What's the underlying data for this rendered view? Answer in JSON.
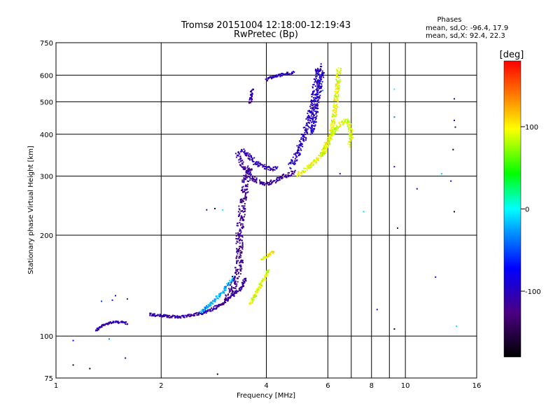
{
  "chart_data": {
    "type": "scatter",
    "title": "Tromsø 20151004 12:18:00-12:19:43",
    "subtitle": "RwPretec (Bp)",
    "phase_info": {
      "heading": "Phases",
      "o_stats": "mean, sd,O: -96.4, 17.9",
      "x_stats": "mean, sd,X:  92.4, 22.3"
    },
    "xlabel": "Frequency [MHz]",
    "ylabel": "Stationary phase Virtual Height [km]",
    "x_scale": "log",
    "y_scale": "log",
    "xlim": [
      1,
      16
    ],
    "ylim": [
      75,
      750
    ],
    "x_ticks": [
      1,
      2,
      4,
      6,
      8,
      10,
      16
    ],
    "x_tick_labels": [
      "1",
      "2",
      "4",
      "6",
      "8",
      "10",
      "16"
    ],
    "y_ticks": [
      75,
      100,
      200,
      300,
      400,
      500,
      600,
      750
    ],
    "y_tick_labels": [
      "75",
      "100",
      "200",
      "300",
      "400",
      "500",
      "600",
      "750"
    ],
    "grid": true,
    "colorbar": {
      "label": "[deg]",
      "range": [
        -180,
        180
      ],
      "ticks": [
        100,
        0,
        -100
      ],
      "tick_labels": [
        "100",
        "0",
        "-100"
      ],
      "colors": [
        "#000000",
        "#4b0082",
        "#0000ff",
        "#00ffff",
        "#00ff00",
        "#ffff00",
        "#ff8000",
        "#ff0000"
      ]
    },
    "series": [
      {
        "traces": [
          {
            "points": [
              [
                1.3,
                104
              ],
              [
                1.35,
                107
              ],
              [
                1.4,
                109
              ],
              [
                1.45,
                110
              ],
              [
                1.5,
                110
              ],
              [
                1.55,
                110
              ],
              [
                1.6,
                109
              ]
            ],
            "phase": -110,
            "spread": 1.5
          },
          {
            "points": [
              [
                1.85,
                116
              ],
              [
                2.0,
                115
              ],
              [
                2.2,
                114
              ],
              [
                2.4,
                115
              ],
              [
                2.6,
                117
              ],
              [
                2.8,
                120
              ],
              [
                3.0,
                125
              ],
              [
                3.2,
                132
              ],
              [
                3.4,
                140
              ],
              [
                3.5,
                150
              ]
            ],
            "phase": -110,
            "spread": 2
          },
          {
            "points": [
              [
                2.6,
                118
              ],
              [
                2.8,
                126
              ],
              [
                3.0,
                135
              ],
              [
                3.1,
                142
              ],
              [
                3.25,
                150
              ]
            ],
            "phase": -20,
            "spread": 2
          },
          {
            "points": [
              [
                3.1,
                130
              ],
              [
                3.2,
                140
              ],
              [
                3.3,
                150
              ],
              [
                3.35,
                165
              ],
              [
                3.35,
                180
              ],
              [
                3.35,
                200
              ],
              [
                3.4,
                230
              ],
              [
                3.45,
                260
              ],
              [
                3.5,
                290
              ],
              [
                3.55,
                310
              ],
              [
                3.6,
                320
              ]
            ],
            "phase": -120,
            "spread": 5
          },
          {
            "points": [
              [
                3.3,
                350
              ],
              [
                3.45,
                320
              ],
              [
                3.6,
                300
              ],
              [
                3.8,
                288
              ],
              [
                4.0,
                285
              ],
              [
                4.2,
                290
              ],
              [
                4.5,
                300
              ],
              [
                4.8,
                310
              ]
            ],
            "phase": -115,
            "spread": 3
          },
          {
            "points": [
              [
                3.4,
                360
              ],
              [
                3.6,
                340
              ],
              [
                3.8,
                325
              ],
              [
                4.0,
                318
              ],
              [
                4.3,
                315
              ]
            ],
            "phase": -105,
            "spread": 3
          },
          {
            "points": [
              [
                3.6,
                495
              ],
              [
                3.62,
                520
              ],
              [
                3.65,
                545
              ]
            ],
            "phase": -110,
            "spread": 2
          },
          {
            "points": [
              [
                4.0,
                580
              ],
              [
                4.2,
                595
              ],
              [
                4.5,
                605
              ],
              [
                4.8,
                610
              ]
            ],
            "phase": -105,
            "spread": 2
          },
          {
            "points": [
              [
                4.7,
                320
              ],
              [
                4.9,
                350
              ],
              [
                5.1,
                390
              ],
              [
                5.3,
                440
              ],
              [
                5.45,
                500
              ],
              [
                5.55,
                560
              ],
              [
                5.6,
                600
              ],
              [
                5.65,
                640
              ]
            ],
            "phase": -100,
            "spread": 4
          },
          {
            "points": [
              [
                5.4,
                400
              ],
              [
                5.5,
                450
              ],
              [
                5.6,
                500
              ],
              [
                5.7,
                560
              ],
              [
                5.8,
                620
              ]
            ],
            "phase": -95,
            "spread": 3
          },
          {
            "points": [
              [
                4.9,
                300
              ],
              [
                5.2,
                315
              ],
              [
                5.5,
                330
              ],
              [
                5.8,
                350
              ],
              [
                6.0,
                380
              ],
              [
                6.2,
                420
              ],
              [
                6.3,
                480
              ],
              [
                6.4,
                560
              ],
              [
                6.45,
                630
              ]
            ],
            "phase": 95,
            "spread": 3
          },
          {
            "points": [
              [
                5.8,
                350
              ],
              [
                6.1,
                390
              ],
              [
                6.4,
                420
              ],
              [
                6.7,
                440
              ],
              [
                6.9,
                430
              ],
              [
                7.0,
                400
              ],
              [
                6.9,
                370
              ]
            ],
            "phase": 90,
            "spread": 3
          },
          {
            "points": [
              [
                3.6,
                125
              ],
              [
                3.75,
                135
              ],
              [
                3.9,
                145
              ],
              [
                4.0,
                152
              ],
              [
                4.05,
                158
              ]
            ],
            "phase": 90,
            "spread": 2
          },
          {
            "points": [
              [
                3.85,
                168
              ],
              [
                3.95,
                172
              ],
              [
                4.1,
                176
              ],
              [
                4.2,
                178
              ]
            ],
            "phase": 100,
            "spread": 2
          },
          {
            "points": [
              [
                1.12,
                97
              ],
              [
                1.12,
                82
              ],
              [
                1.25,
                80
              ],
              [
                1.35,
                127
              ],
              [
                1.45,
                128
              ],
              [
                1.48,
                132
              ],
              [
                1.6,
                129
              ],
              [
                1.42,
                98
              ],
              [
                1.58,
                86
              ],
              [
                2.7,
                238
              ],
              [
                2.85,
                240
              ],
              [
                3.0,
                238
              ],
              [
                3.3,
                180
              ],
              [
                5.8,
                540
              ],
              [
                6.5,
                305
              ],
              [
                7.6,
                235
              ],
              [
                8.3,
                120
              ],
              [
                9.3,
                545
              ],
              [
                9.3,
                450
              ],
              [
                9.3,
                320
              ],
              [
                9.3,
                105
              ],
              [
                9.5,
                210
              ],
              [
                10.8,
                275
              ],
              [
                12.2,
                150
              ],
              [
                12.7,
                305
              ],
              [
                13.5,
                290
              ],
              [
                13.7,
                360
              ],
              [
                13.8,
                510
              ],
              [
                13.8,
                440
              ],
              [
                13.9,
                420
              ],
              [
                13.8,
                235
              ],
              [
                14.0,
                107
              ],
              [
                2.9,
                77
              ]
            ],
            "phase": -95,
            "spread": 0
          }
        ]
      }
    ]
  }
}
